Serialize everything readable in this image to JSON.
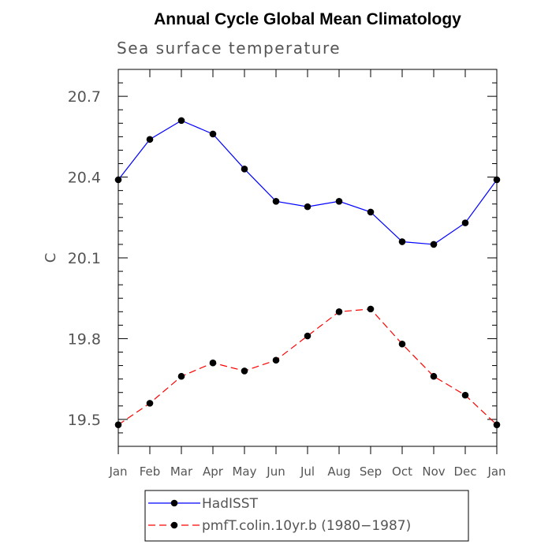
{
  "chart_data": {
    "type": "line",
    "title": "Annual Cycle Global Mean Climatology",
    "subtitle": "Sea surface temperature",
    "xlabel": "",
    "ylabel": "C",
    "categories": [
      "Jan",
      "Feb",
      "Mar",
      "Apr",
      "May",
      "Jun",
      "Jul",
      "Aug",
      "Sep",
      "Oct",
      "Nov",
      "Dec",
      "Jan"
    ],
    "ylim": [
      19.4,
      20.8
    ],
    "yticks": [
      19.5,
      19.8,
      20.1,
      20.4,
      20.7
    ],
    "ytick_labels": [
      "19.5",
      "19.8",
      "20.1",
      "20.4",
      "20.7"
    ],
    "grid": false,
    "legend_position": "bottom",
    "series": [
      {
        "name": "HadISST",
        "color": "#0000ff",
        "line_style": "solid",
        "marker": "filled-circle",
        "values": [
          20.39,
          20.54,
          20.61,
          20.56,
          20.43,
          20.31,
          20.29,
          20.31,
          20.27,
          20.16,
          20.15,
          20.23,
          20.39
        ]
      },
      {
        "name": "pmfT.colin.10yr.b (1980−1987)",
        "color": "#ff0000",
        "line_style": "dashed",
        "marker": "filled-circle",
        "values": [
          19.48,
          19.56,
          19.66,
          19.71,
          19.68,
          19.72,
          19.81,
          19.9,
          19.91,
          19.78,
          19.66,
          19.59,
          19.48
        ]
      }
    ]
  }
}
